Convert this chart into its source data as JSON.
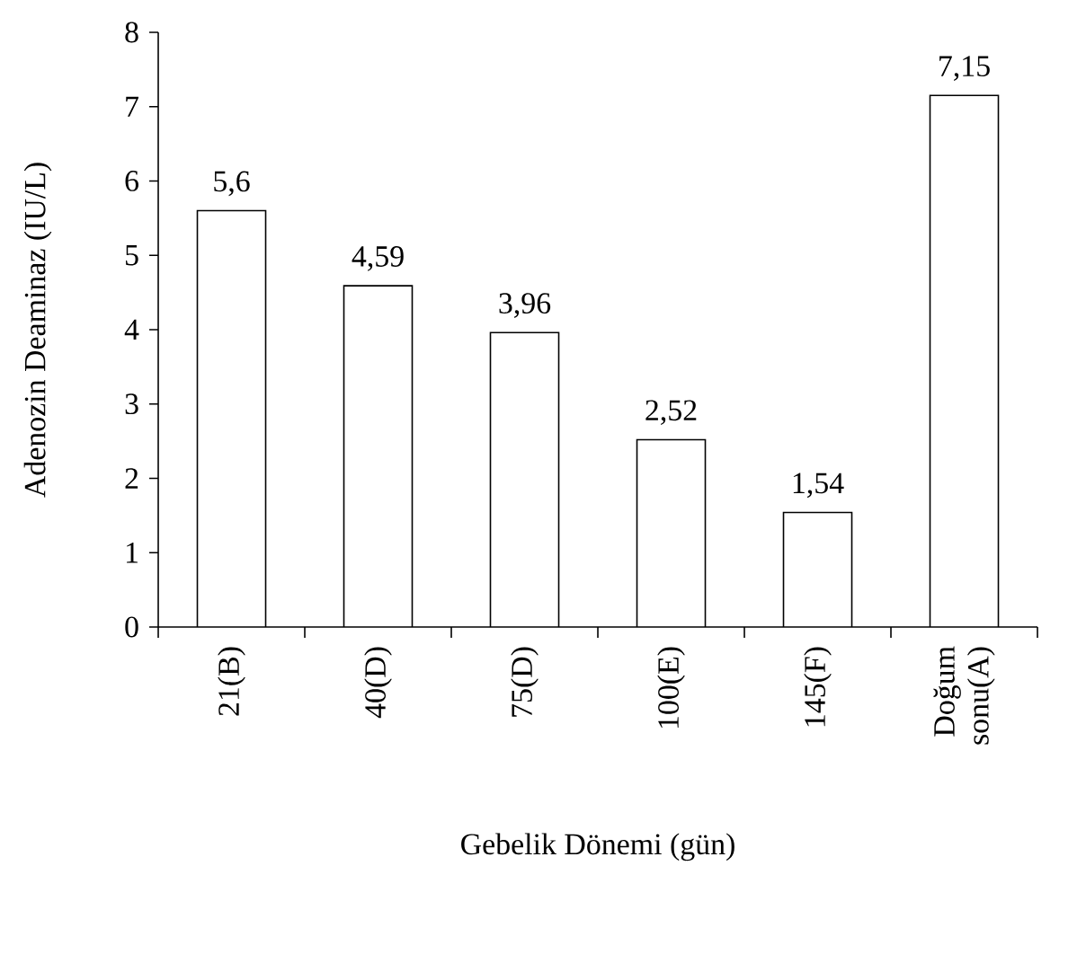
{
  "chart_data": {
    "type": "bar",
    "xlabel": "Gebelik Dönemi (gün)",
    "ylabel": "Adenozin Deaminaz (IU/L)",
    "categories": [
      "21(B)",
      "40(D)",
      "75(D)",
      "100(E)",
      "145(F)",
      "Doğum sonu(A)"
    ],
    "values": [
      5.6,
      4.59,
      3.96,
      2.52,
      1.54,
      7.15
    ],
    "value_labels": [
      "5,6",
      "4,59",
      "3,96",
      "2,52",
      "1,54",
      "7,15"
    ],
    "color": "#ffffff",
    "ylim": [
      0,
      8
    ],
    "yticks": [
      0,
      1,
      2,
      3,
      4,
      5,
      6,
      7,
      8
    ],
    "grid": false
  }
}
